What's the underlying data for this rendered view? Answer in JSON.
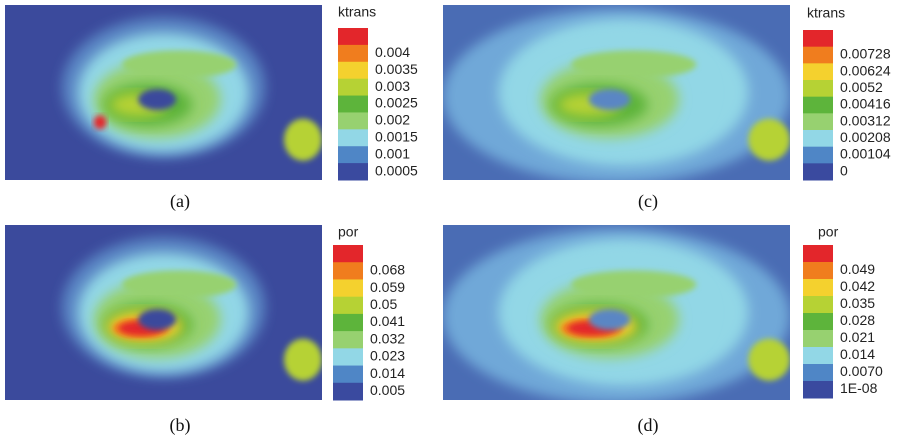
{
  "panels": [
    {
      "title": "ktrans",
      "ticks": [
        "0.004",
        "0.0035",
        "0.003",
        "0.0025",
        "0.002",
        "0.0015",
        "0.001",
        "0.0005"
      ],
      "caption": "(a)"
    },
    {
      "title": "ktrans",
      "ticks": [
        "0.00728",
        "0.00624",
        "0.0052",
        "0.00416",
        "0.00312",
        "0.00208",
        "0.00104",
        "0"
      ],
      "caption": "(c)"
    },
    {
      "title": "por",
      "ticks": [
        "0.068",
        "0.059",
        "0.05",
        "0.041",
        "0.032",
        "0.023",
        "0.014",
        "0.005"
      ],
      "caption": "(b)"
    },
    {
      "title": "por",
      "ticks": [
        "0.049",
        "0.042",
        "0.035",
        "0.028",
        "0.021",
        "0.014",
        "0.0070",
        "1E-08"
      ],
      "caption": "(d)"
    }
  ]
}
